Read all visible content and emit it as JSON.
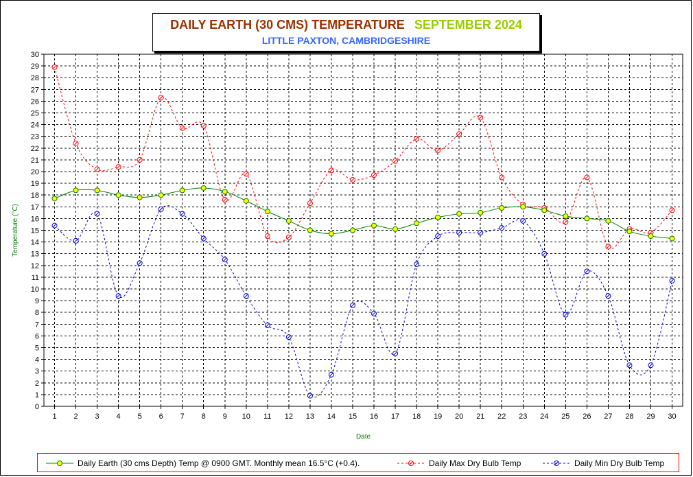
{
  "title": {
    "main": "DAILY EARTH (30 CMS) TEMPERATURE",
    "month": "SEPTEMBER 2024",
    "subtitle": "LITTLE PAXTON, CAMBRIDGESHIRE"
  },
  "colors": {
    "earth": "#008000",
    "earth_marker": "#ffff00",
    "max": "#ff0000",
    "min": "#0000cc",
    "title_main": "#993300",
    "title_month": "#99cc00",
    "subtitle": "#3366ff",
    "axis_label": "#008000"
  },
  "chart_data": {
    "type": "line",
    "xlabel": "Date",
    "ylabel": "Temperature (°C)",
    "ylim": [
      0,
      30
    ],
    "grid": true,
    "legend_position": "bottom",
    "x": [
      1,
      2,
      3,
      4,
      5,
      6,
      7,
      8,
      9,
      10,
      11,
      12,
      13,
      14,
      15,
      16,
      17,
      18,
      19,
      20,
      21,
      22,
      23,
      24,
      25,
      26,
      27,
      28,
      29,
      30
    ],
    "series": [
      {
        "name": "Daily Earth (30 cms Depth) Temp @ 0900 GMT. Monthly mean 16.5°C (+0.4).",
        "style": "solid",
        "values": [
          17.7,
          18.4,
          18.4,
          18.0,
          17.8,
          18.0,
          18.4,
          18.6,
          18.3,
          17.5,
          16.6,
          15.8,
          15.0,
          14.7,
          15.0,
          15.4,
          15.1,
          15.6,
          16.1,
          16.4,
          16.5,
          16.9,
          17.0,
          16.7,
          16.2,
          16.0,
          15.8,
          14.9,
          14.5,
          14.3
        ]
      },
      {
        "name": "Daily Max Dry Bulb Temp",
        "style": "dashed",
        "values": [
          28.9,
          22.4,
          20.2,
          20.4,
          21.0,
          26.3,
          23.7,
          23.9,
          17.6,
          19.8,
          14.5,
          14.4,
          17.3,
          20.1,
          19.3,
          19.7,
          20.9,
          22.8,
          21.8,
          23.2,
          24.6,
          19.5,
          17.2,
          16.9,
          15.7,
          19.5,
          13.6,
          15.1,
          14.8,
          16.7
        ]
      },
      {
        "name": "Daily Min Dry Bulb Temp",
        "style": "dashed",
        "values": [
          15.4,
          14.1,
          16.4,
          9.4,
          12.2,
          16.8,
          16.4,
          14.3,
          12.5,
          9.4,
          6.9,
          5.9,
          0.9,
          2.7,
          8.6,
          7.9,
          4.5,
          12.1,
          14.5,
          14.8,
          14.8,
          15.2,
          15.8,
          13.0,
          7.8,
          11.5,
          9.4,
          3.5,
          3.5,
          10.7
        ]
      }
    ]
  }
}
